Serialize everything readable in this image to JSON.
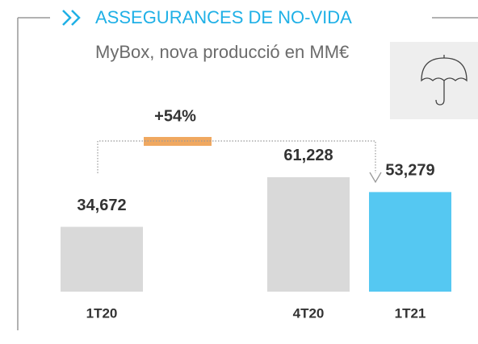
{
  "chart_data": {
    "type": "bar",
    "title": "ASSEGURANCES DE NO-VIDA",
    "subtitle": "MyBox, nova producció en MM€",
    "annotation": "+54%",
    "categories": [
      "1T20",
      "4T20",
      "1T21"
    ],
    "values": [
      34.672,
      61.228,
      53.279
    ],
    "value_labels": [
      "34,672",
      "61,228",
      "53,279"
    ],
    "colors": [
      "#d9d9d9",
      "#d9d9d9",
      "#55c8f2"
    ]
  }
}
